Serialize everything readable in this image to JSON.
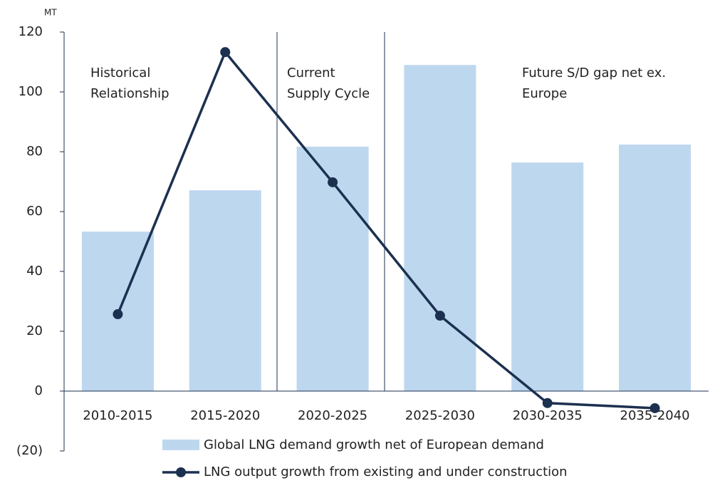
{
  "chart_data": {
    "type": "bar-line",
    "y_unit_label": "MT",
    "categories": [
      "2010-2015",
      "2015-2020",
      "2020-2025",
      "2025-2030",
      "2030-2035",
      "2035-2040"
    ],
    "series": [
      {
        "name": "Global LNG demand growth net of European demand",
        "type": "bar",
        "color": "#bdd7ee",
        "values": [
          53.3,
          67.1,
          81.7,
          109,
          76.4,
          82.4
        ]
      },
      {
        "name": "LNG output growth from existing and under construction",
        "type": "line",
        "color": "#1c3050",
        "values": [
          25.7,
          113.3,
          69.8,
          25.2,
          -4.0,
          -5.7
        ]
      }
    ],
    "ylim": [
      -20,
      120
    ],
    "yticks": [
      {
        "value": -20,
        "label": "(20)"
      },
      0,
      20,
      40,
      60,
      80,
      100,
      120
    ],
    "annotations": [
      {
        "lines": [
          "Historical",
          "Relationship"
        ]
      },
      {
        "lines": [
          "Current",
          "Supply Cycle"
        ]
      },
      {
        "lines": [
          "Future S/D gap net ex.",
          "Europe"
        ]
      }
    ]
  }
}
